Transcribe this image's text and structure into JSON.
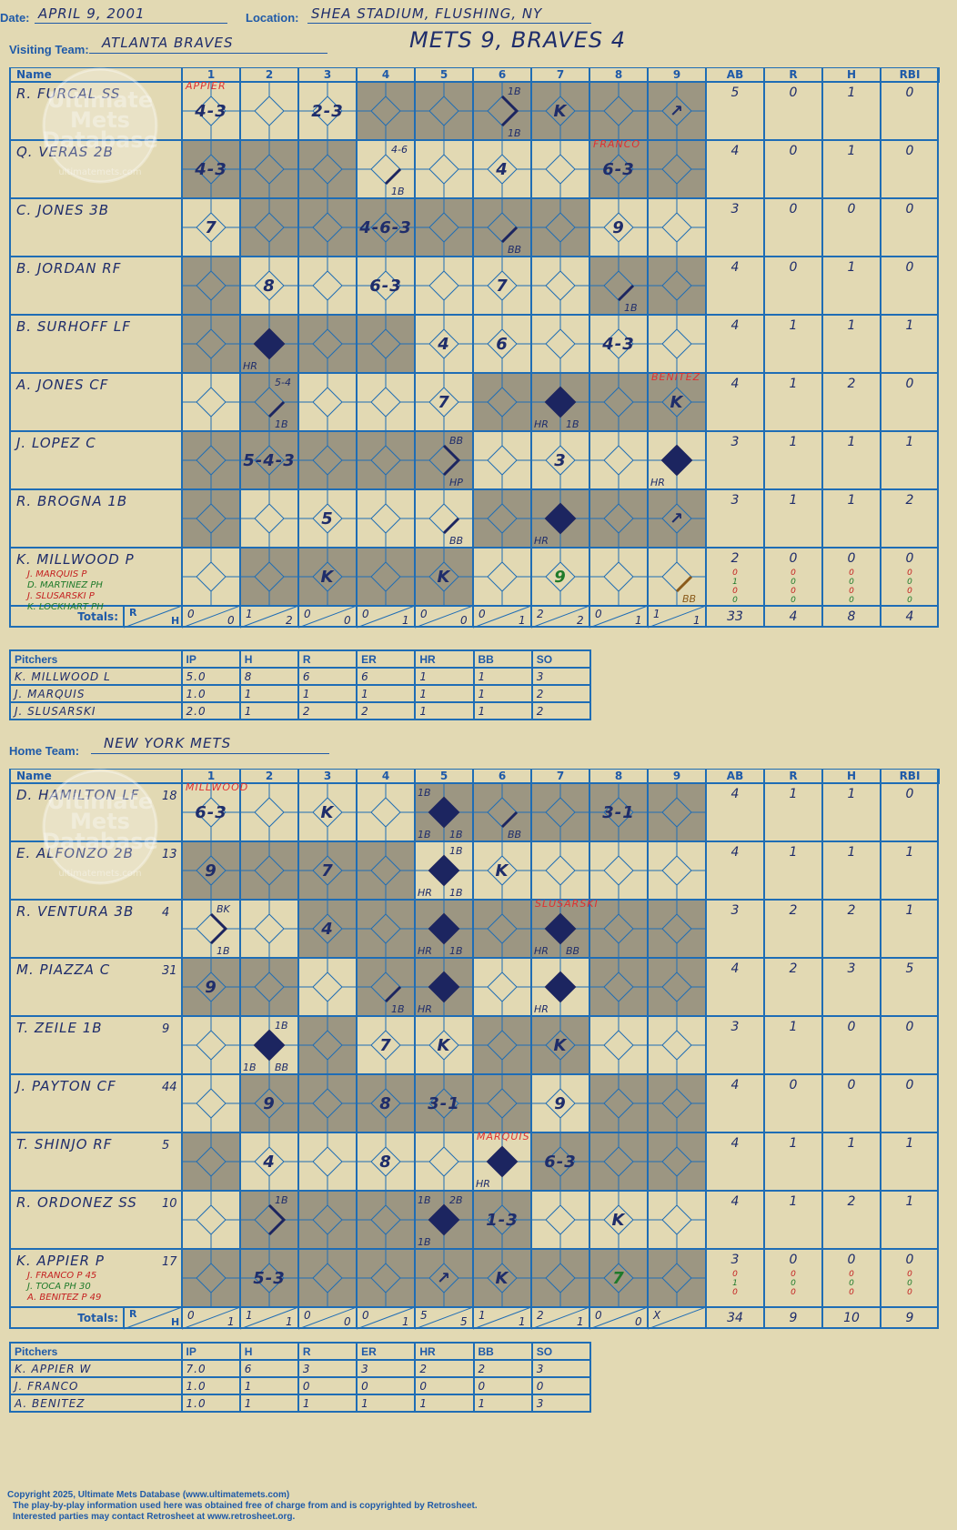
{
  "header": {
    "date_label": "Date:",
    "date_value": "APRIL 9, 2001",
    "location_label": "Location:",
    "location_value": "SHEA STADIUM, FLUSHING, NY",
    "visiting_label": "Visiting Team:",
    "visiting_value": "ATLANTA BRAVES",
    "headline": "METS 9, BRAVES 4",
    "home_label": "Home Team:",
    "home_value": "NEW YORK METS"
  },
  "grid_labels": {
    "name": "Name",
    "innings": [
      "1",
      "2",
      "3",
      "4",
      "5",
      "6",
      "7",
      "8",
      "9"
    ],
    "stats": [
      "AB",
      "R",
      "H",
      "RBI"
    ],
    "totals": "Totals:",
    "r": "R",
    "h": "H"
  },
  "pitch_headers": [
    "Pitchers",
    "IP",
    "H",
    "R",
    "ER",
    "HR",
    "BB",
    "SO"
  ],
  "watermark": {
    "line1": "Ultimate",
    "line2": "Mets",
    "line3": "Database",
    "line4": "ultimatemets.com"
  },
  "visitors": {
    "shade": [
      [
        2,
        4,
        5,
        7,
        8
      ],
      [
        2,
        3,
        5,
        6,
        7,
        9
      ],
      [
        2,
        3,
        5,
        7,
        9
      ],
      [
        1,
        3,
        5,
        7,
        9
      ],
      [
        1,
        3,
        7,
        9
      ],
      [
        1,
        3,
        6,
        8
      ],
      [
        1,
        3,
        6,
        8
      ],
      [
        1,
        2,
        4,
        6,
        8
      ],
      [
        1,
        2,
        4,
        6,
        8
      ]
    ],
    "players": [
      {
        "name": "R. FURCAL SS",
        "subs": [],
        "stats": [
          "5",
          "0",
          "1",
          "0"
        ],
        "sub_stats": []
      },
      {
        "name": "Q. VERAS 2B",
        "subs": [],
        "stats": [
          "4",
          "0",
          "1",
          "0"
        ],
        "sub_stats": []
      },
      {
        "name": "C. JONES 3B",
        "subs": [],
        "stats": [
          "3",
          "0",
          "0",
          "0"
        ],
        "sub_stats": []
      },
      {
        "name": "B. JORDAN RF",
        "subs": [],
        "stats": [
          "4",
          "0",
          "1",
          "0"
        ],
        "sub_stats": []
      },
      {
        "name": "B. SURHOFF LF",
        "subs": [],
        "stats": [
          "4",
          "1",
          "1",
          "1"
        ],
        "sub_stats": []
      },
      {
        "name": "A. JONES CF",
        "subs": [],
        "stats": [
          "4",
          "1",
          "2",
          "0"
        ],
        "sub_stats": []
      },
      {
        "name": "J. LOPEZ C",
        "subs": [],
        "stats": [
          "3",
          "1",
          "1",
          "1"
        ],
        "sub_stats": []
      },
      {
        "name": "R. BROGNA 1B",
        "subs": [],
        "stats": [
          "3",
          "1",
          "1",
          "2"
        ],
        "sub_stats": []
      },
      {
        "name": "K. MILLWOOD P",
        "subs": [
          {
            "text": "J. MARQUIS P",
            "color": "#c42020"
          },
          {
            "text": "D. MARTINEZ PH",
            "color": "#1e7a2a"
          },
          {
            "text": "J. SLUSARSKI P",
            "color": "#c42020"
          },
          {
            "text": "K. LOCKHART PH",
            "color": "#1e7a2a"
          }
        ],
        "stats": [
          "2",
          "0",
          "0",
          "0"
        ],
        "sub_stats": [
          [
            "0",
            "0",
            "0",
            "0"
          ],
          [
            "1",
            "0",
            "0",
            "0"
          ],
          [
            "0",
            "0",
            "0",
            "0"
          ],
          [
            "0",
            "0",
            "0",
            "0"
          ]
        ]
      }
    ],
    "cells": [
      {
        "r": 0,
        "c": 1,
        "t": "4-3"
      },
      {
        "r": 0,
        "c": 3,
        "t": "2-3"
      },
      {
        "r": 0,
        "c": 6,
        "path": "12",
        "lab": [
          [
            "1B",
            "tr"
          ],
          [
            "1B",
            "br"
          ]
        ]
      },
      {
        "r": 0,
        "c": 7,
        "t": "K"
      },
      {
        "r": 0,
        "c": 9,
        "t": "↗"
      },
      {
        "r": 1,
        "c": 1,
        "t": "4-3"
      },
      {
        "r": 1,
        "c": 4,
        "path": "1",
        "lab": [
          [
            "4-6",
            "tr"
          ],
          [
            "1B",
            "br"
          ]
        ]
      },
      {
        "r": 1,
        "c": 6,
        "t": "4"
      },
      {
        "r": 1,
        "c": 8,
        "t": "6-3"
      },
      {
        "r": 2,
        "c": 1,
        "t": "7"
      },
      {
        "r": 2,
        "c": 4,
        "t": "4-6-3"
      },
      {
        "r": 2,
        "c": 6,
        "path": "1",
        "lab": [
          [
            "BB",
            "br"
          ]
        ]
      },
      {
        "r": 2,
        "c": 8,
        "t": "9"
      },
      {
        "r": 3,
        "c": 2,
        "t": "8"
      },
      {
        "r": 3,
        "c": 4,
        "t": "6-3"
      },
      {
        "r": 3,
        "c": 6,
        "t": "7"
      },
      {
        "r": 3,
        "c": 8,
        "path": "1",
        "lab": [
          [
            "1B",
            "br"
          ]
        ]
      },
      {
        "r": 4,
        "c": 2,
        "path": "F",
        "lab": [
          [
            "HR",
            "bl"
          ]
        ]
      },
      {
        "r": 4,
        "c": 5,
        "t": "4"
      },
      {
        "r": 4,
        "c": 6,
        "t": "6"
      },
      {
        "r": 4,
        "c": 8,
        "t": "4-3"
      },
      {
        "r": 5,
        "c": 2,
        "path": "1",
        "lab": [
          [
            "5-4",
            "tr"
          ],
          [
            "1B",
            "br"
          ]
        ]
      },
      {
        "r": 5,
        "c": 5,
        "t": "7"
      },
      {
        "r": 5,
        "c": 7,
        "path": "F",
        "lab": [
          [
            "HR",
            "bl"
          ],
          [
            "1B",
            "br"
          ]
        ]
      },
      {
        "r": 5,
        "c": 9,
        "t": "K"
      },
      {
        "r": 6,
        "c": 2,
        "t": "5-4-3"
      },
      {
        "r": 6,
        "c": 5,
        "path": "12",
        "lab": [
          [
            "BB",
            "tr"
          ],
          [
            "HP",
            "br"
          ]
        ]
      },
      {
        "r": 6,
        "c": 7,
        "t": "3"
      },
      {
        "r": 6,
        "c": 9,
        "path": "F",
        "lab": [
          [
            "HR",
            "bl"
          ]
        ]
      },
      {
        "r": 7,
        "c": 3,
        "t": "5"
      },
      {
        "r": 7,
        "c": 5,
        "path": "1",
        "lab": [
          [
            "BB",
            "br"
          ]
        ]
      },
      {
        "r": 7,
        "c": 7,
        "path": "F",
        "lab": [
          [
            "HR",
            "bl"
          ]
        ]
      },
      {
        "r": 7,
        "c": 9,
        "t": "↗"
      },
      {
        "r": 8,
        "c": 3,
        "t": "K"
      },
      {
        "r": 8,
        "c": 5,
        "t": "K"
      },
      {
        "r": 8,
        "c": 7,
        "t": "9",
        "color": "#1e7a2a"
      },
      {
        "r": 8,
        "c": 9,
        "path": "1",
        "pcolor": "#8a5a1a",
        "lab": [
          [
            "BB",
            "br"
          ]
        ],
        "lcolor": "#8a5a1a"
      }
    ],
    "notes": [
      {
        "r": 0,
        "c": 1,
        "t": "APPIER"
      },
      {
        "r": 1,
        "c": 8,
        "t": "FRANCO"
      },
      {
        "r": 5,
        "c": 9,
        "t": "BENITEZ"
      }
    ],
    "totals": [
      [
        "0",
        "0"
      ],
      [
        "1",
        "2"
      ],
      [
        "0",
        "0"
      ],
      [
        "0",
        "1"
      ],
      [
        "0",
        "0"
      ],
      [
        "0",
        "1"
      ],
      [
        "2",
        "2"
      ],
      [
        "0",
        "1"
      ],
      [
        "1",
        "1"
      ]
    ],
    "total_stats": [
      "33",
      "4",
      "8",
      "4"
    ],
    "pitchers": [
      [
        "K. MILLWOOD  L",
        "5.0",
        "8",
        "6",
        "6",
        "1",
        "1",
        "3"
      ],
      [
        "J. MARQUIS",
        "1.0",
        "1",
        "1",
        "1",
        "1",
        "1",
        "2"
      ],
      [
        "J. SLUSARSKI",
        "2.0",
        "1",
        "2",
        "2",
        "1",
        "1",
        "2"
      ]
    ]
  },
  "home": {
    "shade": [
      [
        2,
        4,
        7,
        9
      ],
      [
        2,
        4,
        6,
        8,
        9
      ],
      [
        2,
        3,
        5,
        6,
        8,
        9
      ],
      [
        2,
        3,
        4,
        6,
        8,
        9
      ],
      [
        1,
        3,
        4,
        6,
        8,
        9
      ],
      [
        1,
        3,
        5,
        6,
        8,
        9
      ],
      [
        1,
        3,
        5,
        7,
        9
      ],
      [
        1,
        3,
        4,
        6,
        7,
        9
      ],
      [
        1,
        3,
        4,
        6,
        7,
        9
      ]
    ],
    "players": [
      {
        "name": "D. HAMILTON LF",
        "num": "18",
        "subs": [],
        "stats": [
          "4",
          "1",
          "1",
          "0"
        ],
        "sub_stats": []
      },
      {
        "name": "E. ALFONZO 2B",
        "num": "13",
        "subs": [],
        "stats": [
          "4",
          "1",
          "1",
          "1"
        ],
        "sub_stats": []
      },
      {
        "name": "R. VENTURA 3B",
        "num": "4",
        "subs": [],
        "stats": [
          "3",
          "2",
          "2",
          "1"
        ],
        "sub_stats": []
      },
      {
        "name": "M. PIAZZA C",
        "num": "31",
        "subs": [],
        "stats": [
          "4",
          "2",
          "3",
          "5"
        ],
        "sub_stats": []
      },
      {
        "name": "T. ZEILE 1B",
        "num": "9",
        "subs": [],
        "stats": [
          "3",
          "1",
          "0",
          "0"
        ],
        "sub_stats": []
      },
      {
        "name": "J. PAYTON CF",
        "num": "44",
        "subs": [],
        "stats": [
          "4",
          "0",
          "0",
          "0"
        ],
        "sub_stats": []
      },
      {
        "name": "T. SHINJO RF",
        "num": "5",
        "subs": [],
        "stats": [
          "4",
          "1",
          "1",
          "1"
        ],
        "sub_stats": []
      },
      {
        "name": "R. ORDONEZ SS",
        "num": "10",
        "subs": [],
        "stats": [
          "4",
          "1",
          "2",
          "1"
        ],
        "sub_stats": []
      },
      {
        "name": "K. APPIER P",
        "num": "17",
        "subs": [
          {
            "text": "J. FRANCO P  45",
            "color": "#c42020"
          },
          {
            "text": "J. TOCA PH  30",
            "color": "#1e7a2a"
          },
          {
            "text": "A. BENITEZ P  49",
            "color": "#c42020"
          }
        ],
        "stats": [
          "3",
          "0",
          "0",
          "0"
        ],
        "sub_stats": [
          [
            "0",
            "0",
            "0",
            "0"
          ],
          [
            "1",
            "0",
            "0",
            "0"
          ],
          [
            "0",
            "0",
            "0",
            "0"
          ]
        ]
      }
    ],
    "cells": [
      {
        "r": 0,
        "c": 1,
        "t": "6-3"
      },
      {
        "r": 0,
        "c": 3,
        "t": "K"
      },
      {
        "r": 0,
        "c": 5,
        "path": "F",
        "lab": [
          [
            "1B",
            "tl"
          ],
          [
            "1B",
            "bl"
          ],
          [
            "1B",
            "br"
          ]
        ]
      },
      {
        "r": 0,
        "c": 6,
        "path": "1",
        "lab": [
          [
            "BB",
            "br"
          ]
        ]
      },
      {
        "r": 0,
        "c": 8,
        "t": "3-1"
      },
      {
        "r": 1,
        "c": 1,
        "t": "9"
      },
      {
        "r": 1,
        "c": 3,
        "t": "7"
      },
      {
        "r": 1,
        "c": 5,
        "path": "F",
        "lab": [
          [
            "1B",
            "tr"
          ],
          [
            "HR",
            "bl"
          ],
          [
            "1B",
            "br"
          ]
        ]
      },
      {
        "r": 1,
        "c": 6,
        "t": "K"
      },
      {
        "r": 2,
        "c": 1,
        "path": "12",
        "lab": [
          [
            "BK",
            "tr"
          ],
          [
            "1B",
            "br"
          ]
        ]
      },
      {
        "r": 2,
        "c": 3,
        "t": "4"
      },
      {
        "r": 2,
        "c": 5,
        "path": "F",
        "lab": [
          [
            "HR",
            "bl"
          ],
          [
            "1B",
            "br"
          ]
        ]
      },
      {
        "r": 2,
        "c": 7,
        "path": "F",
        "lab": [
          [
            "HR",
            "bl"
          ],
          [
            "BB",
            "br"
          ]
        ]
      },
      {
        "r": 3,
        "c": 1,
        "t": "9"
      },
      {
        "r": 3,
        "c": 4,
        "path": "1",
        "lab": [
          [
            "1B",
            "br"
          ]
        ]
      },
      {
        "r": 3,
        "c": 5,
        "path": "F",
        "lab": [
          [
            "HR",
            "bl"
          ]
        ]
      },
      {
        "r": 3,
        "c": 7,
        "path": "F",
        "lab": [
          [
            "HR",
            "bl"
          ]
        ]
      },
      {
        "r": 4,
        "c": 2,
        "path": "F",
        "lab": [
          [
            "1B",
            "tr"
          ],
          [
            "1B",
            "bl"
          ],
          [
            "BB",
            "br"
          ]
        ]
      },
      {
        "r": 4,
        "c": 4,
        "t": "7"
      },
      {
        "r": 4,
        "c": 5,
        "t": "K"
      },
      {
        "r": 4,
        "c": 7,
        "t": "K"
      },
      {
        "r": 5,
        "c": 2,
        "t": "9"
      },
      {
        "r": 5,
        "c": 4,
        "t": "8"
      },
      {
        "r": 5,
        "c": 5,
        "t": "3-1"
      },
      {
        "r": 5,
        "c": 7,
        "t": "9"
      },
      {
        "r": 6,
        "c": 2,
        "t": "4"
      },
      {
        "r": 6,
        "c": 4,
        "t": "8"
      },
      {
        "r": 6,
        "c": 6,
        "path": "F",
        "lab": [
          [
            "HR",
            "bl"
          ]
        ]
      },
      {
        "r": 6,
        "c": 7,
        "t": "6-3"
      },
      {
        "r": 7,
        "c": 2,
        "path": "12",
        "lab": [
          [
            "1B",
            "tr"
          ]
        ]
      },
      {
        "r": 7,
        "c": 5,
        "path": "F",
        "lab": [
          [
            "1B",
            "tl"
          ],
          [
            "2B",
            "tr"
          ],
          [
            "1B",
            "bl"
          ]
        ]
      },
      {
        "r": 7,
        "c": 6,
        "t": "1-3"
      },
      {
        "r": 7,
        "c": 8,
        "t": "K"
      },
      {
        "r": 8,
        "c": 2,
        "t": "5-3"
      },
      {
        "r": 8,
        "c": 5,
        "t": "↗"
      },
      {
        "r": 8,
        "c": 6,
        "t": "K"
      },
      {
        "r": 8,
        "c": 8,
        "t": "7",
        "color": "#1e7a2a"
      }
    ],
    "notes": [
      {
        "r": 0,
        "c": 1,
        "t": "MILLWOOD"
      },
      {
        "r": 2,
        "c": 7,
        "t": "SLUSARSKI"
      },
      {
        "r": 6,
        "c": 6,
        "t": "MARQUIS"
      }
    ],
    "totals": [
      [
        "0",
        "1"
      ],
      [
        "1",
        "1"
      ],
      [
        "0",
        "0"
      ],
      [
        "0",
        "1"
      ],
      [
        "5",
        "5"
      ],
      [
        "1",
        "1"
      ],
      [
        "2",
        "1"
      ],
      [
        "0",
        "0"
      ],
      [
        "X",
        ""
      ]
    ],
    "total_stats": [
      "34",
      "9",
      "10",
      "9"
    ],
    "pitchers": [
      [
        "K. APPIER  W",
        "7.0",
        "6",
        "3",
        "3",
        "2",
        "2",
        "3"
      ],
      [
        "J. FRANCO",
        "1.0",
        "1",
        "0",
        "0",
        "0",
        "0",
        "0"
      ],
      [
        "A. BENITEZ",
        "1.0",
        "1",
        "1",
        "1",
        "1",
        "1",
        "3"
      ]
    ]
  },
  "footer": {
    "line1": "Copyright 2025, Ultimate Mets Database (www.ultimatemets.com)",
    "line2": "The play-by-play information used here was obtained free of charge from and is copyrighted by Retrosheet.",
    "line3": "Interested parties may contact Retrosheet at www.retrosheet.org."
  },
  "colors": {
    "border": "#1f6db5",
    "shade": "#9c9682",
    "ink": "#1f2d6b",
    "note": "#e03030",
    "diamond": "#1c2560"
  }
}
